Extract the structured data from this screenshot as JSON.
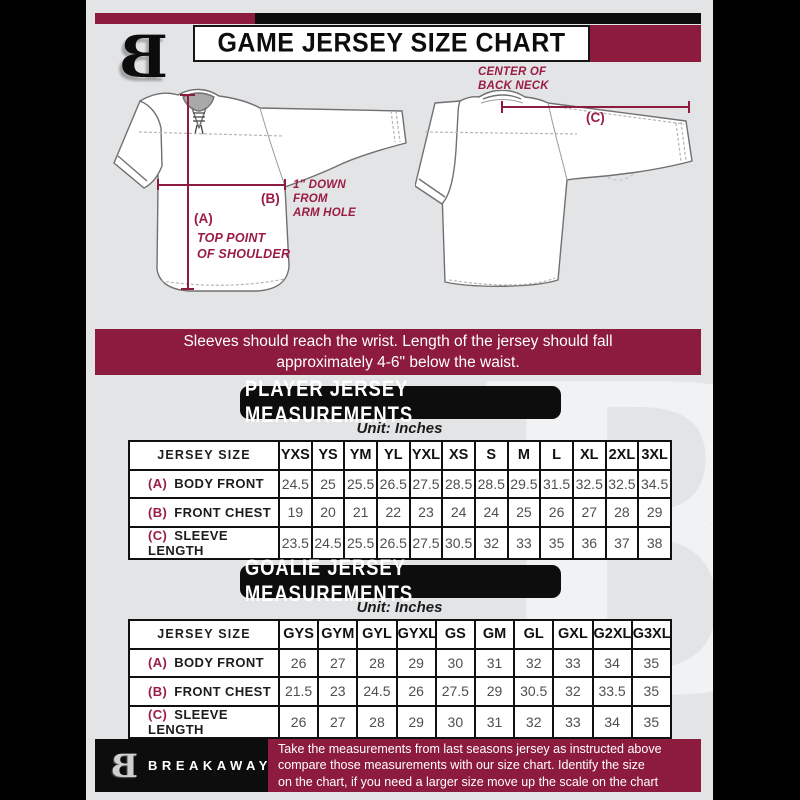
{
  "colors": {
    "maroon": "#8d1b3e",
    "annotation_maroon": "#9a1c44",
    "background_gray": "#e3e4e6",
    "black": "#0d0d0d"
  },
  "header": {
    "title": "GAME JERSEY SIZE CHART",
    "logo_letter": "B"
  },
  "diagram": {
    "front": {
      "label_a": "(A)",
      "label_a_caption": "TOP POINT\nOF SHOULDER",
      "label_b": "(B)",
      "label_b_caption": "1\" DOWN\nFROM\nARM HOLE"
    },
    "back": {
      "label_c": "(C)",
      "label_c_caption": "CENTER OF\nBACK NECK"
    }
  },
  "banner": {
    "text": "Sleeves should reach the wrist. Length of the jersey should fall\napproximately 4-6\" below the waist."
  },
  "player_section": {
    "title": "PLAYER JERSEY MEASUREMENTS",
    "unit": "Unit: Inches",
    "table": {
      "header_label": "JERSEY SIZE",
      "columns": [
        "YXS",
        "YS",
        "YM",
        "YL",
        "YXL",
        "XS",
        "S",
        "M",
        "L",
        "XL",
        "2XL",
        "3XL"
      ],
      "rows": [
        {
          "key": "(A)",
          "label": "BODY FRONT",
          "values": [
            24.5,
            25,
            25.5,
            26.5,
            27.5,
            28.5,
            28.5,
            29.5,
            31.5,
            32.5,
            32.5,
            34.5
          ]
        },
        {
          "key": "(B)",
          "label": "FRONT CHEST",
          "values": [
            19,
            20,
            21,
            22,
            23,
            24,
            24,
            25,
            26,
            27,
            28,
            29
          ]
        },
        {
          "key": "(C)",
          "label": "SLEEVE LENGTH",
          "values": [
            23.5,
            24.5,
            25.5,
            26.5,
            27.5,
            30.5,
            32,
            33,
            35,
            36,
            37,
            38
          ]
        }
      ]
    }
  },
  "goalie_section": {
    "title": "GOALIE JERSEY MEASUREMENTS",
    "unit": "Unit: Inches",
    "table": {
      "header_label": "JERSEY SIZE",
      "columns": [
        "GYS",
        "GYM",
        "GYL",
        "GYXL",
        "GS",
        "GM",
        "GL",
        "GXL",
        "G2XL",
        "G3XL"
      ],
      "rows": [
        {
          "key": "(A)",
          "label": "BODY FRONT",
          "values": [
            26,
            27,
            28,
            29,
            30,
            31,
            32,
            33,
            34,
            35
          ]
        },
        {
          "key": "(B)",
          "label": "FRONT CHEST",
          "values": [
            21.5,
            23,
            24.5,
            26,
            27.5,
            29,
            30.5,
            32,
            33.5,
            35
          ]
        },
        {
          "key": "(C)",
          "label": "SLEEVE LENGTH",
          "values": [
            26,
            27,
            28,
            29,
            30,
            31,
            32,
            33,
            34,
            35
          ]
        }
      ]
    }
  },
  "footer": {
    "logo_letter": "B",
    "brand": "BREAKAWAY",
    "note": "Take the measurements from last seasons jersey as instructed above\ncompare those measurements with our size chart. Identify the size\non the chart, if you need a larger size move up the scale on the chart"
  },
  "watermark_letter": "B"
}
